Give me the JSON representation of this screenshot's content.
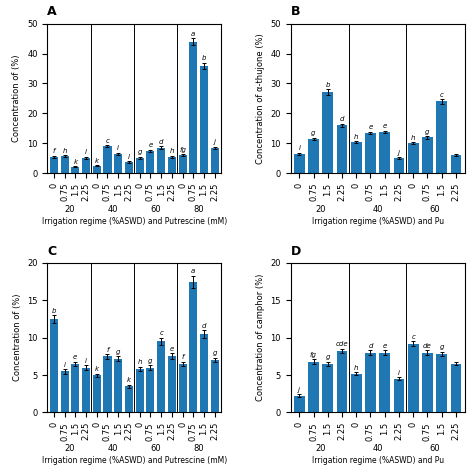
{
  "chart_data": [
    {
      "type": "bar",
      "title": "A",
      "x_label": "Irrigation regime (%ASWD) and Putrescine (mM)",
      "y_label": "Concentration of (%)",
      "groups": [
        "20",
        "40",
        "60",
        "80"
      ],
      "categories": [
        "0",
        "0.75",
        "1.5",
        "2.25",
        "0",
        "0.75",
        "1.5",
        "2.25",
        "0",
        "0.75",
        "1.5",
        "2.25",
        "0",
        "0.75",
        "1.5",
        "2.25"
      ],
      "values": [
        5.5,
        5.8,
        2.2,
        5.2,
        2.5,
        9.0,
        6.5,
        3.8,
        5.2,
        7.5,
        8.5,
        5.5,
        6.0,
        44.0,
        36.0,
        8.5
      ],
      "errors": [
        0.3,
        0.3,
        0.2,
        0.3,
        0.2,
        0.4,
        0.3,
        0.3,
        0.3,
        0.4,
        0.5,
        0.3,
        0.3,
        1.2,
        1.0,
        0.3
      ],
      "bar_letters": [
        "f",
        "h",
        "k",
        "l",
        "k",
        "c",
        "i",
        "l",
        "g",
        "e",
        "d",
        "h",
        "fg",
        "a",
        "b",
        "j"
      ],
      "ylim": [
        0,
        50
      ],
      "yticks": [
        0,
        10,
        20,
        30,
        40,
        50
      ]
    },
    {
      "type": "bar",
      "title": "B",
      "x_label": "Irrigation regime (%ASWD) and Pu",
      "y_label": "Concentration of α-thujone (%)",
      "groups": [
        "20",
        "40",
        "60"
      ],
      "categories": [
        "0",
        "0.75",
        "1.5",
        "2.25",
        "0",
        "0.75",
        "1.5",
        "2.25",
        "0",
        "0.75",
        "1.5",
        "2.25"
      ],
      "values": [
        6.5,
        11.5,
        27.0,
        16.0,
        10.5,
        13.5,
        13.8,
        5.0,
        10.0,
        12.0,
        24.0,
        6.0
      ],
      "errors": [
        0.3,
        0.4,
        1.0,
        0.5,
        0.3,
        0.4,
        0.4,
        0.3,
        0.4,
        0.4,
        0.8,
        0.3
      ],
      "bar_letters": [
        "i",
        "g",
        "b",
        "d",
        "h",
        "e",
        "e",
        "j",
        "h",
        "g",
        "c",
        null
      ],
      "ylim": [
        0,
        50
      ],
      "yticks": [
        0,
        10,
        20,
        30,
        40,
        50
      ]
    },
    {
      "type": "bar",
      "title": "C",
      "x_label": "Irrigation regime (%ASWD) and Putrescine (mM)",
      "y_label": "Concentration of (%)",
      "groups": [
        "20",
        "40",
        "60",
        "80"
      ],
      "categories": [
        "0",
        "0.75",
        "1.5",
        "2.25",
        "0",
        "0.75",
        "1.5",
        "2.25",
        "0",
        "0.75",
        "1.5",
        "2.25",
        "0",
        "0.75",
        "1.5",
        "2.25"
      ],
      "values": [
        12.5,
        5.5,
        6.5,
        6.0,
        5.0,
        7.5,
        7.2,
        3.5,
        5.8,
        6.0,
        9.5,
        7.5,
        6.5,
        17.5,
        10.5,
        7.0
      ],
      "errors": [
        0.5,
        0.3,
        0.3,
        0.3,
        0.2,
        0.3,
        0.3,
        0.2,
        0.3,
        0.3,
        0.5,
        0.4,
        0.3,
        0.8,
        0.5,
        0.3
      ],
      "bar_letters": [
        "b",
        "i",
        "e",
        "i",
        "k",
        "f",
        "g",
        "k",
        "h",
        "g",
        "c",
        "e",
        "f",
        "a",
        "d",
        "g"
      ],
      "ylim": [
        0,
        20
      ],
      "yticks": [
        0,
        5,
        10,
        15,
        20
      ]
    },
    {
      "type": "bar",
      "title": "D",
      "x_label": "Irrigation regime (%ASWD) and Pu",
      "y_label": "Concentration of camphor (%)",
      "groups": [
        "20",
        "40",
        "60"
      ],
      "categories": [
        "0",
        "0.75",
        "1.5",
        "2.25",
        "0",
        "0.75",
        "1.5",
        "2.25",
        "0",
        "0.75",
        "1.5",
        "2.25"
      ],
      "values": [
        2.2,
        6.8,
        6.5,
        8.2,
        5.2,
        8.0,
        8.0,
        4.5,
        9.2,
        8.0,
        7.8,
        6.5
      ],
      "errors": [
        0.2,
        0.3,
        0.3,
        0.3,
        0.2,
        0.3,
        0.3,
        0.2,
        0.3,
        0.3,
        0.3,
        0.2
      ],
      "bar_letters": [
        "j",
        "fg",
        "g",
        "cde",
        "h",
        "d",
        "e",
        "i",
        "c",
        "de",
        "g",
        null
      ],
      "ylim": [
        0,
        20
      ],
      "yticks": [
        0,
        5,
        10,
        15,
        20
      ]
    }
  ]
}
